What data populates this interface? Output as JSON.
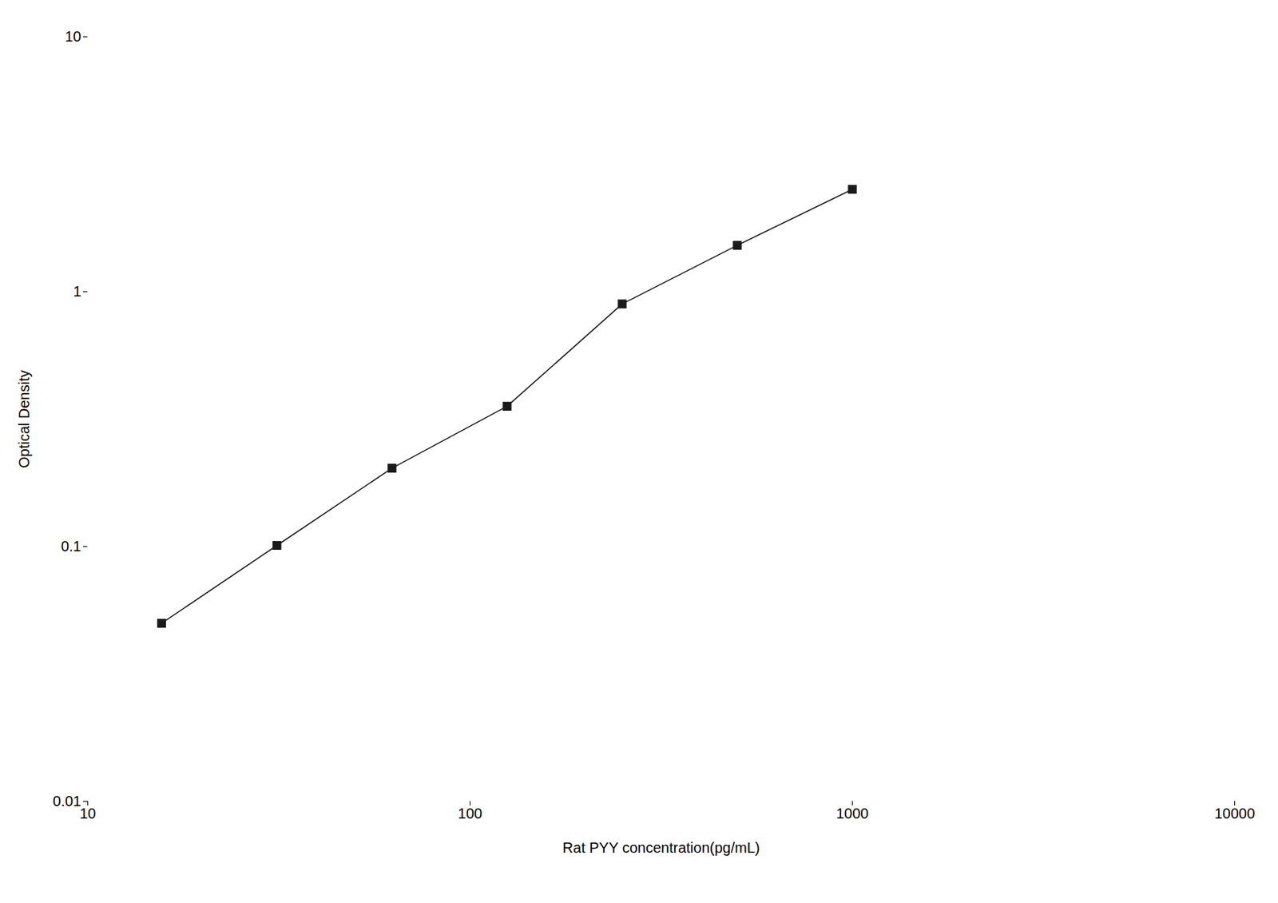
{
  "chart_data": {
    "type": "line",
    "x": [
      15.6,
      31.25,
      62.5,
      125,
      250,
      500,
      1000
    ],
    "values": [
      0.05,
      0.101,
      0.203,
      0.355,
      0.895,
      1.52,
      2.52
    ],
    "xlabel": "Rat PYY concentration(pg/mL)",
    "ylabel": "Optical Density",
    "xlim": [
      10,
      10000
    ],
    "ylim": [
      0.01,
      10
    ],
    "xticks": [
      10,
      100,
      1000,
      10000
    ],
    "yticks": [
      0.01,
      0.1,
      1,
      10
    ],
    "log": true,
    "grid": false,
    "color": "#1a1a1a",
    "marker": "square"
  }
}
